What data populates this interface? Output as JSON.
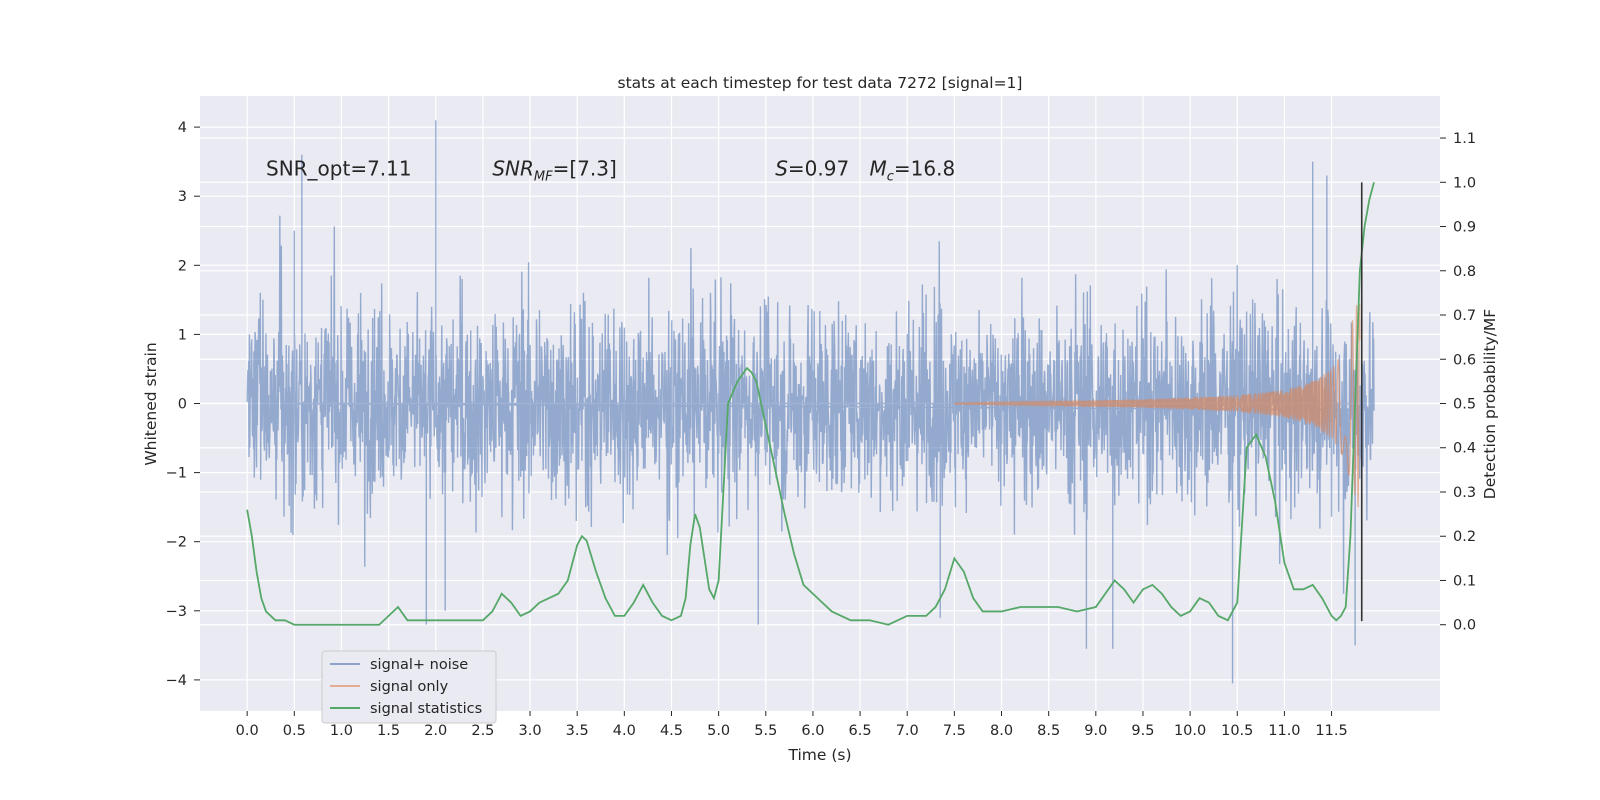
{
  "chart_data": {
    "type": "line",
    "title": "stats at each timestep for test data 7272 [signal=1]",
    "xlabel": "Time (s)",
    "ylabel_left": "Whitened strain",
    "ylabel_right": "Detection probability/MF",
    "xlim": [
      -0.5,
      12.65
    ],
    "ylim_left": [
      -4.45,
      4.45
    ],
    "ylim_right": [
      -0.195,
      1.195
    ],
    "x_ticks": [
      "0.0",
      "0.5",
      "1.0",
      "1.5",
      "2.0",
      "2.5",
      "3.0",
      "3.5",
      "4.0",
      "4.5",
      "5.0",
      "5.5",
      "6.0",
      "6.5",
      "7.0",
      "7.5",
      "8.0",
      "8.5",
      "9.0",
      "9.5",
      "10.0",
      "10.5",
      "11.0",
      "11.5"
    ],
    "y_ticks_left": [
      "4",
      "3",
      "2",
      "1",
      "0",
      "−1",
      "−2",
      "−3",
      "−4"
    ],
    "y_ticks_right": [
      "1.1",
      "1.0",
      "0.9",
      "0.8",
      "0.7",
      "0.6",
      "0.5",
      "0.4",
      "0.3",
      "0.2",
      "0.1",
      "0.0"
    ],
    "grid": true,
    "legend_position": "lower-left",
    "annotations": [
      {
        "text": "SNR_opt=7.11",
        "x": 0.2,
        "y": 3.3
      },
      {
        "text": "SNR",
        "sub": "MF",
        "tail": "=[7.3]",
        "italic": true,
        "x": 2.6,
        "y": 3.3
      },
      {
        "text": "S",
        "tail": "=0.97",
        "italic": true,
        "x": 5.6,
        "y": 3.3
      },
      {
        "text": "M",
        "sub": "c",
        "tail": "=16.8",
        "italic": true,
        "x": 6.6,
        "y": 3.3
      }
    ],
    "marker_line": {
      "x": 11.82,
      "y_top": 3.2,
      "y_bottom": -3.15
    },
    "series": [
      {
        "name": "signal+ noise",
        "color": "#4c72b0",
        "axis": "left",
        "x_range": [
          0.0,
          11.95
        ],
        "typical_band": [
          -1.3,
          1.3
        ],
        "peaks": [
          [
            0.5,
            2.5
          ],
          [
            0.58,
            3.6
          ],
          [
            1.9,
            -3.2
          ],
          [
            2.0,
            4.1
          ],
          [
            2.1,
            -3.0
          ],
          [
            5.42,
            -3.2
          ],
          [
            7.35,
            -3.1
          ],
          [
            8.9,
            -3.55
          ],
          [
            9.18,
            -3.55
          ],
          [
            10.45,
            -4.05
          ],
          [
            11.3,
            3.5
          ],
          [
            11.45,
            3.3
          ],
          [
            11.75,
            -3.5
          ]
        ]
      },
      {
        "name": "signal only",
        "color": "#dd8452",
        "axis": "left",
        "x_range": [
          7.5,
          11.8
        ],
        "envelope": [
          [
            7.5,
            0.01
          ],
          [
            8.5,
            0.03
          ],
          [
            9.5,
            0.06
          ],
          [
            10.5,
            0.12
          ],
          [
            11.0,
            0.2
          ],
          [
            11.3,
            0.32
          ],
          [
            11.5,
            0.5
          ],
          [
            11.6,
            0.7
          ],
          [
            11.7,
            1.1
          ],
          [
            11.78,
            1.5
          ]
        ]
      },
      {
        "name": "signal statistics",
        "color": "#55a868",
        "axis": "right",
        "x": [
          0.0,
          0.05,
          0.1,
          0.15,
          0.2,
          0.3,
          0.4,
          0.5,
          0.6,
          0.8,
          1.0,
          1.2,
          1.4,
          1.5,
          1.6,
          1.7,
          1.8,
          2.0,
          2.2,
          2.4,
          2.5,
          2.6,
          2.7,
          2.8,
          2.9,
          3.0,
          3.1,
          3.2,
          3.3,
          3.4,
          3.5,
          3.55,
          3.6,
          3.7,
          3.8,
          3.9,
          4.0,
          4.1,
          4.2,
          4.3,
          4.4,
          4.5,
          4.6,
          4.65,
          4.7,
          4.75,
          4.8,
          4.85,
          4.9,
          4.95,
          5.0,
          5.05,
          5.1,
          5.2,
          5.3,
          5.35,
          5.4,
          5.45,
          5.5,
          5.6,
          5.7,
          5.8,
          5.9,
          6.0,
          6.1,
          6.2,
          6.4,
          6.6,
          6.8,
          7.0,
          7.1,
          7.2,
          7.3,
          7.4,
          7.5,
          7.6,
          7.7,
          7.8,
          8.0,
          8.2,
          8.4,
          8.6,
          8.8,
          9.0,
          9.1,
          9.2,
          9.3,
          9.4,
          9.5,
          9.6,
          9.7,
          9.8,
          9.9,
          10.0,
          10.1,
          10.2,
          10.3,
          10.4,
          10.5,
          10.6,
          10.7,
          10.8,
          10.9,
          11.0,
          11.1,
          11.2,
          11.3,
          11.4,
          11.5,
          11.55,
          11.6,
          11.65,
          11.7,
          11.75,
          11.8,
          11.85,
          11.9,
          11.95
        ],
        "values": [
          0.26,
          0.2,
          0.12,
          0.06,
          0.03,
          0.01,
          0.01,
          0.0,
          0.0,
          0.0,
          0.0,
          0.0,
          0.0,
          0.02,
          0.04,
          0.01,
          0.01,
          0.01,
          0.01,
          0.01,
          0.01,
          0.03,
          0.07,
          0.05,
          0.02,
          0.03,
          0.05,
          0.06,
          0.07,
          0.1,
          0.18,
          0.2,
          0.19,
          0.12,
          0.06,
          0.02,
          0.02,
          0.05,
          0.09,
          0.05,
          0.02,
          0.01,
          0.02,
          0.06,
          0.18,
          0.25,
          0.22,
          0.15,
          0.08,
          0.06,
          0.1,
          0.3,
          0.5,
          0.55,
          0.58,
          0.57,
          0.55,
          0.5,
          0.45,
          0.35,
          0.25,
          0.16,
          0.09,
          0.07,
          0.05,
          0.03,
          0.01,
          0.01,
          0.0,
          0.02,
          0.02,
          0.02,
          0.04,
          0.08,
          0.15,
          0.12,
          0.06,
          0.03,
          0.03,
          0.04,
          0.04,
          0.04,
          0.03,
          0.04,
          0.07,
          0.1,
          0.08,
          0.05,
          0.08,
          0.09,
          0.07,
          0.04,
          0.02,
          0.03,
          0.06,
          0.05,
          0.02,
          0.01,
          0.05,
          0.4,
          0.43,
          0.38,
          0.28,
          0.14,
          0.08,
          0.08,
          0.09,
          0.06,
          0.02,
          0.01,
          0.02,
          0.04,
          0.2,
          0.5,
          0.8,
          0.9,
          0.96,
          1.0
        ]
      }
    ]
  }
}
